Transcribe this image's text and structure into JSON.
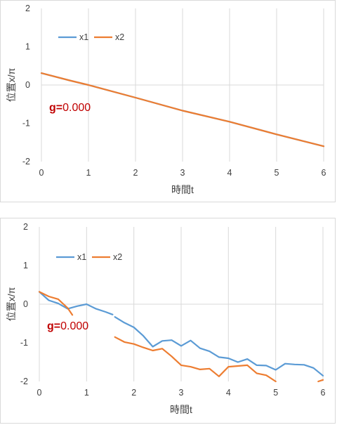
{
  "colors": {
    "x1": "#5b9bd5",
    "x2": "#ed7d31",
    "grid": "#d9d9d9",
    "annotation": "#c00000"
  },
  "chart_data": [
    {
      "type": "line",
      "xlabel": "時間t",
      "ylabel": "位置x/π",
      "xlim": [
        0,
        6
      ],
      "ylim": [
        -2,
        2
      ],
      "xticks": [
        "0",
        "1",
        "2",
        "3",
        "4",
        "5",
        "6"
      ],
      "yticks": [
        "2",
        "1",
        "0",
        "-1",
        "-2"
      ],
      "grid": "vertical",
      "legend": "top-left",
      "annotation": {
        "prefix": "g=",
        "value": "0.000"
      },
      "series": [
        {
          "name": "x1",
          "segments": [
            [
              [
                0,
                0.31
              ],
              [
                0.6,
                0.12
              ],
              [
                1,
                0.0
              ],
              [
                2,
                -0.33
              ],
              [
                3,
                -0.67
              ],
              [
                4,
                -0.96
              ],
              [
                5,
                -1.29
              ],
              [
                6,
                -1.6
              ]
            ]
          ]
        },
        {
          "name": "x2",
          "segments": [
            [
              [
                0,
                0.31
              ],
              [
                0.6,
                0.12
              ],
              [
                1,
                0.0
              ],
              [
                2,
                -0.33
              ],
              [
                3,
                -0.67
              ],
              [
                4,
                -0.96
              ],
              [
                5,
                -1.29
              ],
              [
                6,
                -1.6
              ]
            ]
          ]
        }
      ]
    },
    {
      "type": "line",
      "xlabel": "時間t",
      "ylabel": "位置x/π",
      "xlim": [
        0,
        6
      ],
      "ylim": [
        -2,
        2
      ],
      "xticks": [
        "0",
        "1",
        "2",
        "3",
        "4",
        "5",
        "6"
      ],
      "yticks": [
        "2",
        "1",
        "0",
        "-1",
        "-2"
      ],
      "grid": "vertical",
      "legend": "top-left",
      "annotation": {
        "prefix": "g=",
        "value": "0.000"
      },
      "series": [
        {
          "name": "x1",
          "segments": [
            [
              [
                0,
                0.32
              ],
              [
                0.2,
                0.1
              ],
              [
                0.4,
                0.02
              ],
              [
                0.6,
                -0.12
              ],
              [
                0.8,
                -0.05
              ],
              [
                1.0,
                0.0
              ],
              [
                1.2,
                -0.12
              ],
              [
                1.4,
                -0.2
              ],
              [
                1.55,
                -0.27
              ]
            ],
            [
              [
                1.6,
                -0.33
              ],
              [
                1.8,
                -0.48
              ],
              [
                2.0,
                -0.6
              ],
              [
                2.2,
                -0.82
              ],
              [
                2.4,
                -1.1
              ],
              [
                2.6,
                -0.95
              ],
              [
                2.8,
                -0.93
              ],
              [
                3.0,
                -1.08
              ],
              [
                3.2,
                -0.94
              ],
              [
                3.4,
                -1.14
              ],
              [
                3.6,
                -1.22
              ],
              [
                3.8,
                -1.37
              ],
              [
                4.0,
                -1.4
              ],
              [
                4.2,
                -1.5
              ],
              [
                4.4,
                -1.42
              ],
              [
                4.6,
                -1.58
              ],
              [
                4.8,
                -1.59
              ],
              [
                5.0,
                -1.7
              ],
              [
                5.2,
                -1.54
              ],
              [
                5.4,
                -1.56
              ],
              [
                5.6,
                -1.57
              ],
              [
                5.8,
                -1.65
              ],
              [
                6.0,
                -1.85
              ]
            ]
          ]
        },
        {
          "name": "x2",
          "segments": [
            [
              [
                0,
                0.32
              ],
              [
                0.2,
                0.2
              ],
              [
                0.4,
                0.13
              ],
              [
                0.6,
                -0.1
              ],
              [
                0.7,
                -0.28
              ]
            ],
            [
              [
                1.6,
                -0.85
              ],
              [
                1.8,
                -0.98
              ],
              [
                2.0,
                -1.03
              ],
              [
                2.2,
                -1.12
              ],
              [
                2.4,
                -1.2
              ],
              [
                2.6,
                -1.15
              ],
              [
                2.8,
                -1.35
              ],
              [
                3.0,
                -1.58
              ],
              [
                3.2,
                -1.62
              ],
              [
                3.4,
                -1.69
              ],
              [
                3.6,
                -1.67
              ],
              [
                3.8,
                -1.87
              ],
              [
                4.0,
                -1.62
              ],
              [
                4.2,
                -1.6
              ],
              [
                4.4,
                -1.58
              ],
              [
                4.6,
                -1.79
              ],
              [
                4.8,
                -1.84
              ],
              [
                5.0,
                -2.0
              ]
            ],
            [
              [
                5.9,
                -2.0
              ],
              [
                6.0,
                -1.96
              ]
            ]
          ]
        }
      ]
    }
  ]
}
